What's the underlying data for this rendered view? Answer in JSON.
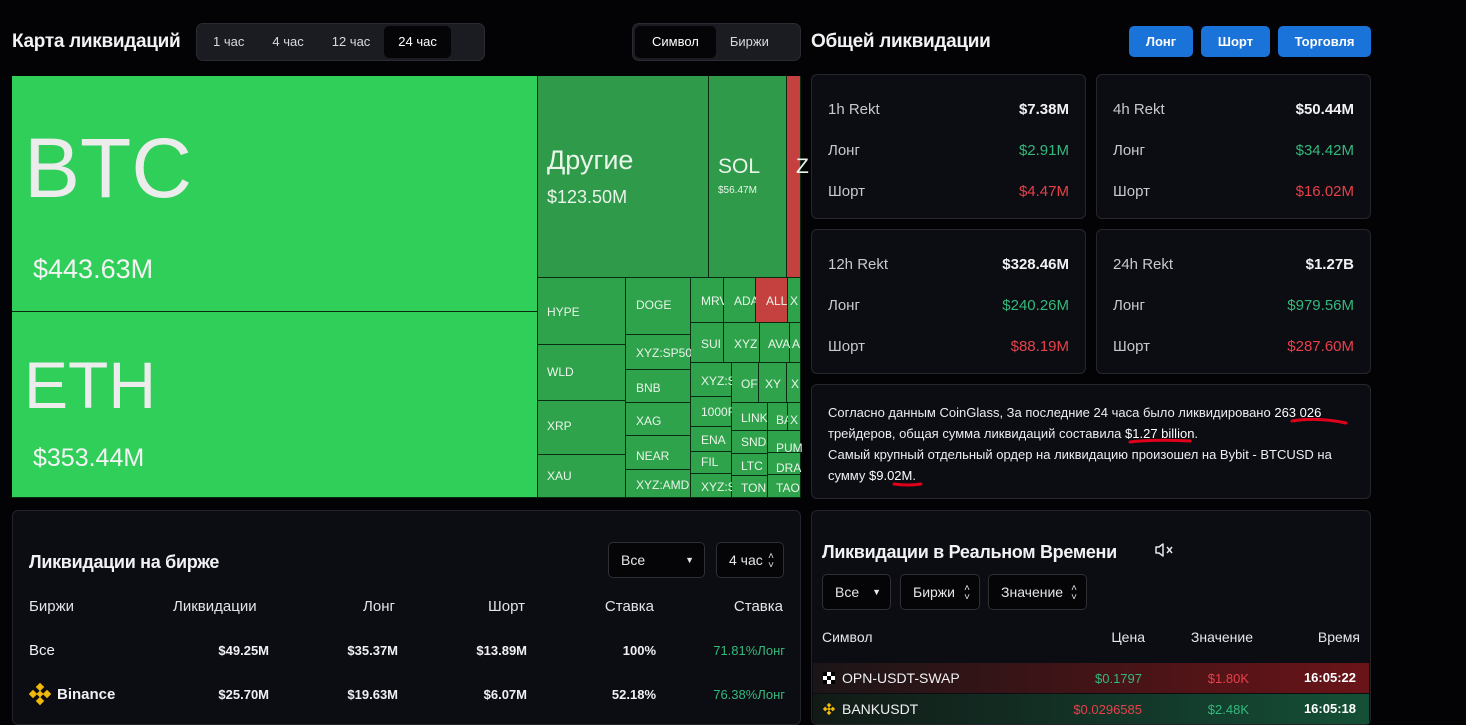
{
  "header": {
    "title": "Карта ликвидаций",
    "time_tabs": [
      "1 час",
      "4 час",
      "12 час",
      "24 час"
    ],
    "active_time": "24 час",
    "view_tabs": [
      "Символ",
      "Биржи"
    ],
    "active_view": "Символ"
  },
  "treemap": {
    "btc": {
      "symbol": "BTC",
      "value": "$443.63M"
    },
    "eth": {
      "symbol": "ETH",
      "value": "$353.44M"
    },
    "other": {
      "symbol": "Другие",
      "value": "$123.50M"
    },
    "sol": {
      "symbol": "SOL",
      "value": "$56.47M"
    },
    "z": {
      "symbol": "Z"
    },
    "small": [
      "HYPE",
      "WLD",
      "XRP",
      "XAU",
      "DOGE",
      "XYZ:SP50",
      "BNB",
      "XAG",
      "NEAR",
      "XYZ:AMD",
      "MRV",
      "ADA",
      "ALL",
      "X",
      "SUI",
      "XYZ",
      "AVA",
      "A",
      "XYZ:S",
      "OF",
      "XY",
      "X",
      "1000F",
      "LINK",
      "BA",
      "X",
      "ENA",
      "SND",
      "PUM",
      "FIL",
      "LTC",
      "DRA",
      "XYZ:S",
      "TON",
      "TAO"
    ]
  },
  "total": {
    "title": "Общей ликвидации",
    "buttons": [
      "Лонг",
      "Шорт",
      "Торговля"
    ],
    "cards": [
      {
        "label": "1h Rekt",
        "total": "$7.38M",
        "long_label": "Лонг",
        "long": "$2.91M",
        "short_label": "Шорт",
        "short": "$4.47M"
      },
      {
        "label": "4h Rekt",
        "total": "$50.44M",
        "long_label": "Лонг",
        "long": "$34.42M",
        "short_label": "Шорт",
        "short": "$16.02M"
      },
      {
        "label": "12h Rekt",
        "total": "$328.46M",
        "long_label": "Лонг",
        "long": "$240.26M",
        "short_label": "Шорт",
        "short": "$88.19M"
      },
      {
        "label": "24h Rekt",
        "total": "$1.27B",
        "long_label": "Лонг",
        "long": "$979.56M",
        "short_label": "Шорт",
        "short": "$287.60M"
      }
    ],
    "summary": {
      "p1": "Согласно данным CoinGlass, За последние 24 часа было ликвидировано",
      "traders": "263 026",
      "p2": "трейдеров, общая сумма ликвидаций составила",
      "amount": "$1.27 billion",
      "p3": "Самый крупный отдельный ордер на ликвидацию произошел на Bybit - BTCUSD на сумму",
      "max_order": "$9.02M",
      "end": "."
    }
  },
  "exchange": {
    "title": "Ликвидации на бирже",
    "filter": "Все",
    "period": "4 час",
    "columns": [
      "Биржи",
      "Ликвидации",
      "Лонг",
      "Шорт",
      "Ставка",
      "Ставка"
    ],
    "rows": [
      {
        "name": "Все",
        "liq": "$49.25M",
        "long": "$35.37M",
        "short": "$13.89M",
        "rate": "100%",
        "ratio": "71.81%Лонг"
      },
      {
        "name": "Binance",
        "liq": "$25.70M",
        "long": "$19.63M",
        "short": "$6.07M",
        "rate": "52.18%",
        "ratio": "76.38%Лонг"
      }
    ]
  },
  "realtime": {
    "title": "Ликвидации в Реальном Времени",
    "filters": [
      "Все",
      "Биржи",
      "Значение"
    ],
    "columns": [
      "Символ",
      "Цена",
      "Значение",
      "Время"
    ],
    "rows": [
      {
        "symbol": "OPN-USDT-SWAP",
        "price": "$0.1797",
        "value": "$1.80K",
        "time": "16:05:22"
      },
      {
        "symbol": "BANKUSDT",
        "price": "$0.0296585",
        "value": "$2.48K",
        "time": "16:05:18"
      }
    ]
  },
  "colors": {
    "accent": "#1a73d9",
    "green": "#34b87c",
    "red": "#e8404a",
    "annotation": "#e0001b"
  }
}
